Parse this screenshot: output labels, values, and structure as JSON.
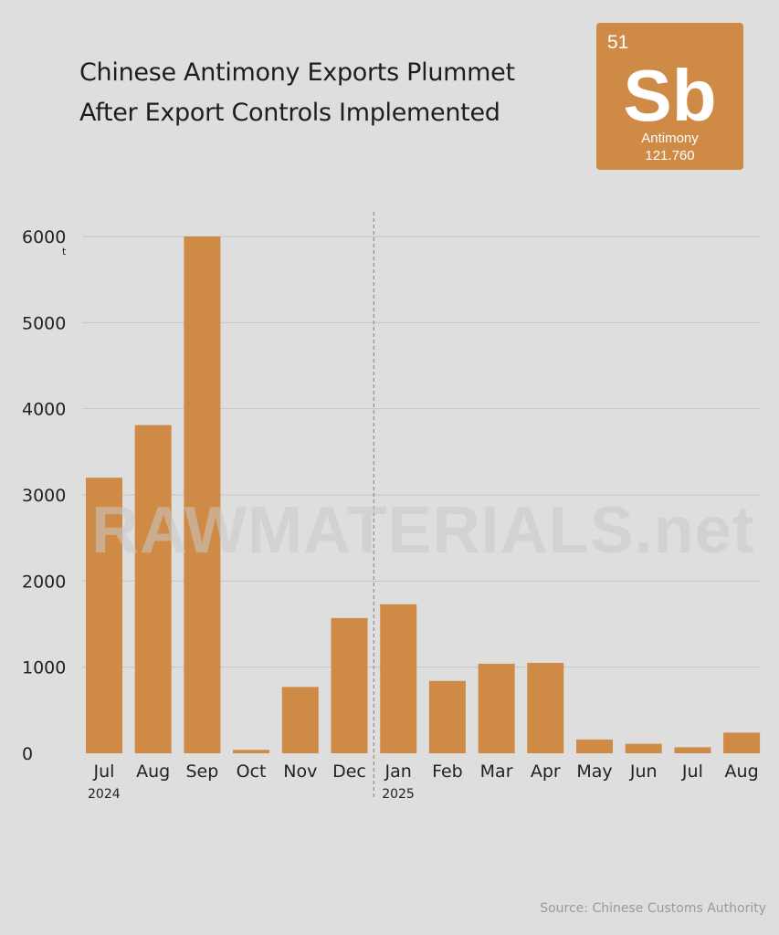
{
  "title_lines": [
    "Chinese Antimony Exports Plummet",
    "After Export Controls Implemented"
  ],
  "element_tile": {
    "number": "51",
    "symbol": "Sb",
    "name": "Antimony",
    "mass": "121.760",
    "color": "#cf8a45"
  },
  "watermark": "RAWMATERIALS.net",
  "source": "Source: Chinese Customs Authority",
  "chart_data": {
    "type": "bar",
    "categories": [
      "Jul",
      "Aug",
      "Sep",
      "Oct",
      "Nov",
      "Dec",
      "Jan",
      "Feb",
      "Mar",
      "Apr",
      "May",
      "Jun",
      "Jul",
      "Aug"
    ],
    "values": [
      3200,
      3810,
      6000,
      40,
      770,
      1570,
      1730,
      840,
      1040,
      1050,
      160,
      110,
      70,
      240
    ],
    "year_labels": [
      {
        "index": 0,
        "label": "2024"
      },
      {
        "index": 6,
        "label": "2025"
      }
    ],
    "divider_after_index": 5,
    "y_unit": "t",
    "ylim": [
      0,
      6000
    ],
    "yticks": [
      0,
      1000,
      2000,
      3000,
      4000,
      5000,
      6000
    ],
    "grid": true,
    "bar_color": "#cf8a45",
    "grid_color": "#c4c4c4"
  }
}
